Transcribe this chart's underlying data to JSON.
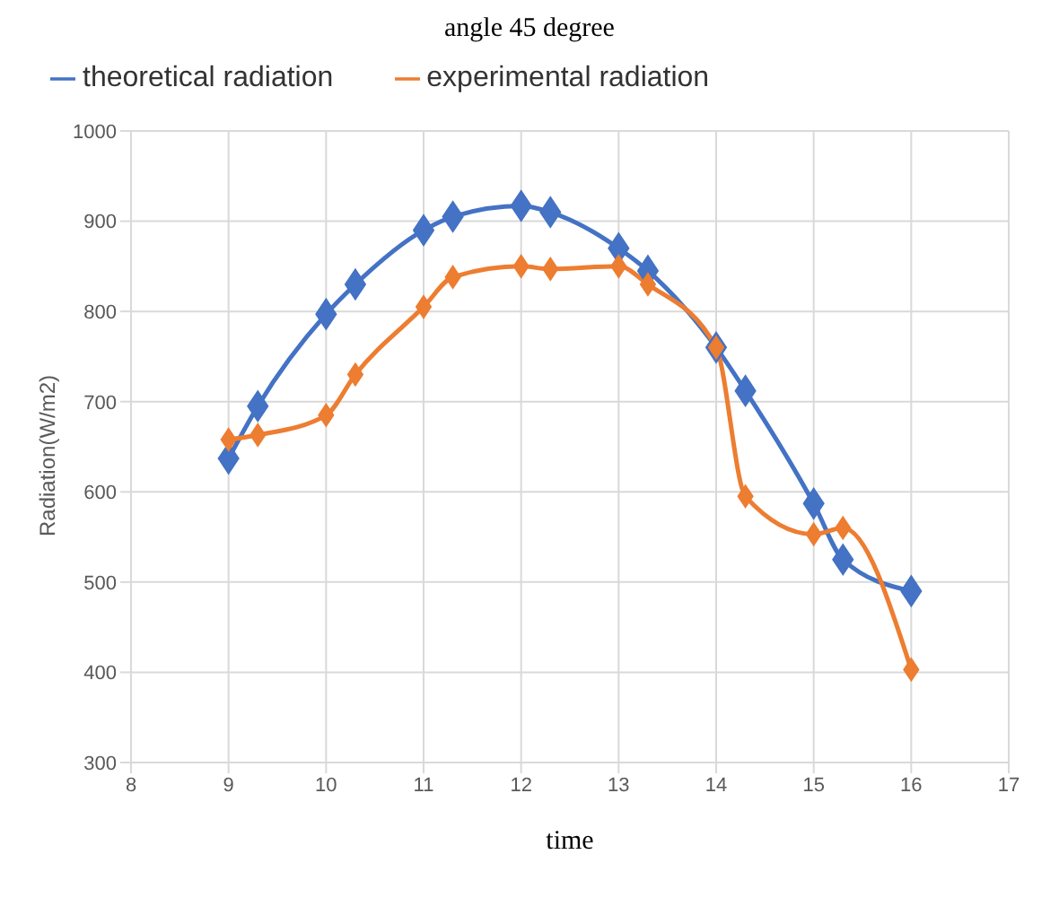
{
  "chart_data": {
    "type": "line",
    "title": "angle 45 degree",
    "xlabel": "time",
    "ylabel": "Radiation(W/m2)",
    "x": [
      9,
      9.3,
      10,
      10.3,
      11,
      11.3,
      12,
      12.3,
      13,
      13.3,
      14,
      14.3,
      15,
      15.3,
      16
    ],
    "series": [
      {
        "name": "theoretical radiation",
        "color": "#4472c4",
        "values": [
          637,
          695,
          797,
          830,
          890,
          905,
          917,
          910,
          870,
          845,
          760,
          712,
          587,
          525,
          490
        ]
      },
      {
        "name": "experimental radiation",
        "color": "#ed7d31",
        "values": [
          658,
          663,
          685,
          730,
          805,
          838,
          850,
          847,
          850,
          830,
          760,
          595,
          553,
          560,
          403
        ]
      }
    ],
    "xlim": [
      8,
      17
    ],
    "xticks": [
      8,
      9,
      10,
      11,
      12,
      13,
      14,
      15,
      16,
      17
    ],
    "ylim": [
      300,
      1000
    ],
    "yticks": [
      300,
      400,
      500,
      600,
      700,
      800,
      900,
      1000
    ],
    "grid": true,
    "legend": "top left",
    "marker": "diamond",
    "line_style": "solid"
  }
}
